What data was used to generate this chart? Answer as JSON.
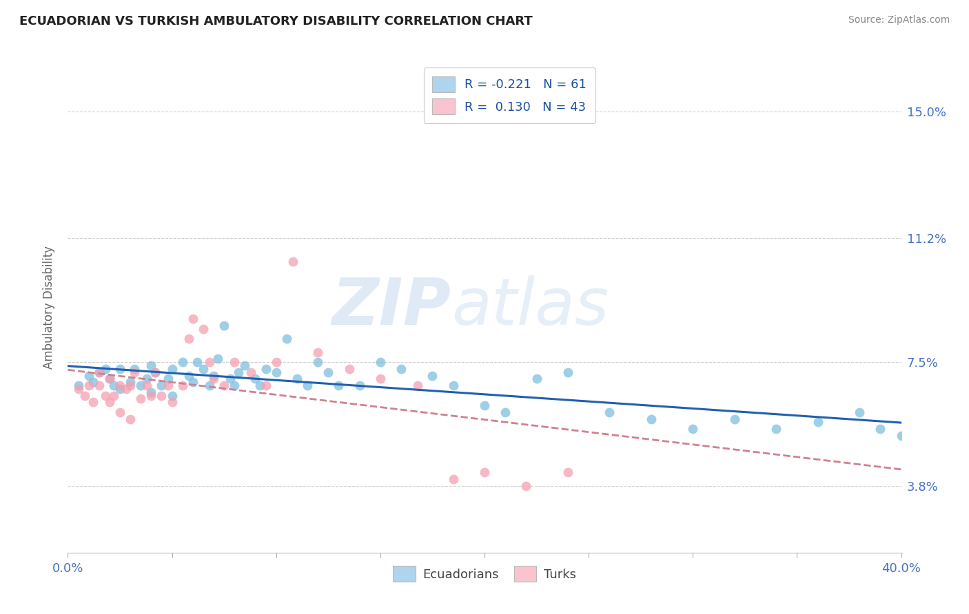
{
  "title": "ECUADORIAN VS TURKISH AMBULATORY DISABILITY CORRELATION CHART",
  "source": "Source: ZipAtlas.com",
  "ylabel": "Ambulatory Disability",
  "ytick_labels": [
    "3.8%",
    "7.5%",
    "11.2%",
    "15.0%"
  ],
  "ytick_values": [
    0.038,
    0.075,
    0.112,
    0.15
  ],
  "xmin": 0.0,
  "xmax": 0.4,
  "ymin": 0.018,
  "ymax": 0.165,
  "legend_r_ecuadorian": "-0.221",
  "legend_n_ecuadorian": "61",
  "legend_r_turkish": "0.130",
  "legend_n_turkish": "43",
  "color_ecuadorian": "#7fbfdf",
  "color_turkish": "#f4a0b0",
  "color_ecuadorian_light": "#aed4ee",
  "color_turkish_light": "#f9c4cf",
  "watermark_color": "#c8daf0",
  "ecuadorian_x": [
    0.005,
    0.01,
    0.012,
    0.015,
    0.018,
    0.02,
    0.022,
    0.025,
    0.025,
    0.03,
    0.032,
    0.035,
    0.038,
    0.04,
    0.04,
    0.042,
    0.045,
    0.048,
    0.05,
    0.05,
    0.055,
    0.058,
    0.06,
    0.062,
    0.065,
    0.068,
    0.07,
    0.072,
    0.075,
    0.078,
    0.08,
    0.082,
    0.085,
    0.09,
    0.092,
    0.095,
    0.1,
    0.105,
    0.11,
    0.115,
    0.12,
    0.125,
    0.13,
    0.14,
    0.15,
    0.16,
    0.175,
    0.185,
    0.2,
    0.21,
    0.225,
    0.24,
    0.26,
    0.28,
    0.3,
    0.32,
    0.34,
    0.36,
    0.38,
    0.39,
    0.4
  ],
  "ecuadorian_y": [
    0.068,
    0.071,
    0.069,
    0.072,
    0.073,
    0.07,
    0.068,
    0.073,
    0.067,
    0.069,
    0.073,
    0.068,
    0.07,
    0.074,
    0.066,
    0.072,
    0.068,
    0.07,
    0.073,
    0.065,
    0.075,
    0.071,
    0.069,
    0.075,
    0.073,
    0.068,
    0.071,
    0.076,
    0.086,
    0.07,
    0.068,
    0.072,
    0.074,
    0.07,
    0.068,
    0.073,
    0.072,
    0.082,
    0.07,
    0.068,
    0.075,
    0.072,
    0.068,
    0.068,
    0.075,
    0.073,
    0.071,
    0.068,
    0.062,
    0.06,
    0.07,
    0.072,
    0.06,
    0.058,
    0.055,
    0.058,
    0.055,
    0.057,
    0.06,
    0.055,
    0.053
  ],
  "turkish_x": [
    0.005,
    0.008,
    0.01,
    0.012,
    0.015,
    0.015,
    0.018,
    0.02,
    0.02,
    0.022,
    0.025,
    0.025,
    0.028,
    0.03,
    0.03,
    0.032,
    0.035,
    0.038,
    0.04,
    0.042,
    0.045,
    0.048,
    0.05,
    0.055,
    0.058,
    0.06,
    0.065,
    0.068,
    0.07,
    0.075,
    0.08,
    0.088,
    0.095,
    0.1,
    0.108,
    0.12,
    0.135,
    0.15,
    0.168,
    0.185,
    0.2,
    0.22,
    0.24
  ],
  "turkish_y": [
    0.067,
    0.065,
    0.068,
    0.063,
    0.072,
    0.068,
    0.065,
    0.07,
    0.063,
    0.065,
    0.068,
    0.06,
    0.067,
    0.068,
    0.058,
    0.072,
    0.064,
    0.068,
    0.065,
    0.072,
    0.065,
    0.068,
    0.063,
    0.068,
    0.082,
    0.088,
    0.085,
    0.075,
    0.07,
    0.068,
    0.075,
    0.072,
    0.068,
    0.075,
    0.105,
    0.078,
    0.073,
    0.07,
    0.068,
    0.04,
    0.042,
    0.038,
    0.042
  ]
}
